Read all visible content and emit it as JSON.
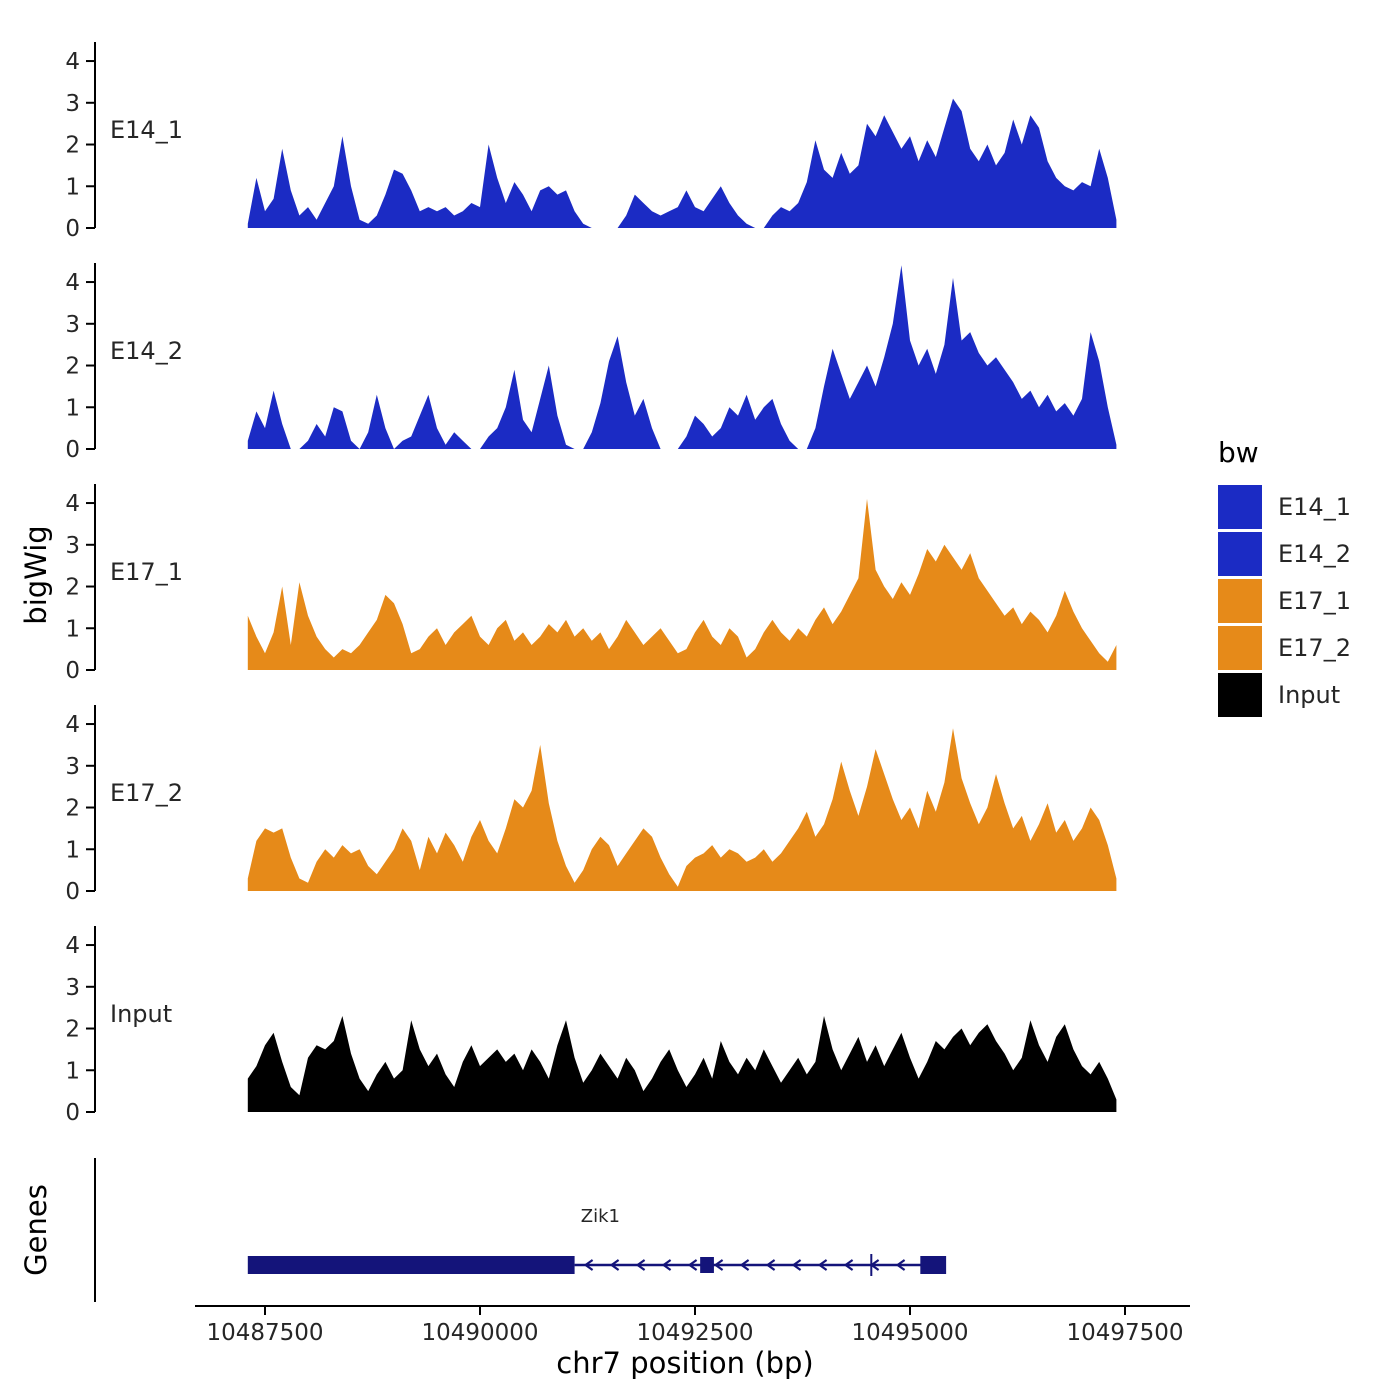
{
  "figure": {
    "y_axis_title": "bigWig",
    "genes_axis_title": "Genes",
    "x_axis_title": "chr7 position (bp)"
  },
  "legend": {
    "title": "bw",
    "items": [
      {
        "label": "E14_1",
        "color": "#1b2bc4"
      },
      {
        "label": "E14_2",
        "color": "#1b2bc4"
      },
      {
        "label": "E17_1",
        "color": "#e68a19"
      },
      {
        "label": "E17_2",
        "color": "#e68a19"
      },
      {
        "label": "Input",
        "color": "#000000"
      }
    ]
  },
  "chart_data": {
    "type": "area",
    "title": "",
    "xlabel": "chr7 position (bp)",
    "ylabel": "bigWig",
    "x_start": 10487300,
    "x_step": 100,
    "x_ticks": [
      10487500,
      10490000,
      10492500,
      10495000,
      10497500
    ],
    "y_ticks": [
      0,
      1,
      2,
      3,
      4
    ],
    "ylim": [
      0,
      4.6
    ],
    "xlim": [
      10486700,
      10498000
    ],
    "tracks": [
      {
        "name": "E14_1",
        "color": "#1b2bc4",
        "values": [
          0.1,
          1.2,
          0.4,
          0.7,
          1.9,
          0.9,
          0.3,
          0.5,
          0.2,
          0.6,
          1.0,
          2.2,
          1.0,
          0.2,
          0.1,
          0.3,
          0.8,
          1.4,
          1.3,
          0.9,
          0.4,
          0.5,
          0.4,
          0.5,
          0.3,
          0.4,
          0.6,
          0.5,
          2.0,
          1.2,
          0.6,
          1.1,
          0.8,
          0.4,
          0.9,
          1.0,
          0.8,
          0.9,
          0.4,
          0.1,
          0,
          0,
          0,
          0,
          0.3,
          0.8,
          0.6,
          0.4,
          0.3,
          0.4,
          0.5,
          0.9,
          0.5,
          0.4,
          0.7,
          1.0,
          0.6,
          0.3,
          0.1,
          0,
          0,
          0.3,
          0.5,
          0.4,
          0.6,
          1.1,
          2.1,
          1.4,
          1.2,
          1.8,
          1.3,
          1.5,
          2.5,
          2.2,
          2.7,
          2.3,
          1.9,
          2.2,
          1.6,
          2.1,
          1.7,
          2.4,
          3.1,
          2.8,
          1.9,
          1.6,
          2.0,
          1.5,
          1.8,
          2.6,
          2.0,
          2.7,
          2.4,
          1.6,
          1.2,
          1.0,
          0.9,
          1.1,
          1.0,
          1.9,
          1.2,
          0.2
        ]
      },
      {
        "name": "E14_2",
        "color": "#1b2bc4",
        "values": [
          0.2,
          0.9,
          0.5,
          1.4,
          0.6,
          0,
          0,
          0.2,
          0.6,
          0.3,
          1.0,
          0.9,
          0.2,
          0,
          0.4,
          1.3,
          0.5,
          0,
          0.2,
          0.3,
          0.8,
          1.3,
          0.5,
          0.1,
          0.4,
          0.2,
          0,
          0,
          0.3,
          0.5,
          1.0,
          1.9,
          0.7,
          0.4,
          1.2,
          2.0,
          0.8,
          0.1,
          0,
          0,
          0.4,
          1.1,
          2.1,
          2.7,
          1.6,
          0.8,
          1.2,
          0.5,
          0,
          0,
          0,
          0.3,
          0.8,
          0.6,
          0.3,
          0.5,
          1.0,
          0.8,
          1.3,
          0.7,
          1.0,
          1.2,
          0.6,
          0.2,
          0,
          0,
          0.5,
          1.5,
          2.4,
          1.8,
          1.2,
          1.6,
          2.0,
          1.5,
          2.2,
          3.0,
          4.4,
          2.6,
          2.0,
          2.4,
          1.8,
          2.5,
          4.1,
          2.6,
          2.8,
          2.3,
          2.0,
          2.2,
          1.9,
          1.6,
          1.2,
          1.4,
          1.0,
          1.3,
          0.9,
          1.1,
          0.8,
          1.2,
          2.8,
          2.1,
          1.0,
          0.1
        ]
      },
      {
        "name": "E17_1",
        "color": "#e68a19",
        "values": [
          1.3,
          0.8,
          0.4,
          0.9,
          2.0,
          0.6,
          2.1,
          1.3,
          0.8,
          0.5,
          0.3,
          0.5,
          0.4,
          0.6,
          0.9,
          1.2,
          1.8,
          1.6,
          1.1,
          0.4,
          0.5,
          0.8,
          1.0,
          0.6,
          0.9,
          1.1,
          1.3,
          0.8,
          0.6,
          1.0,
          1.2,
          0.7,
          0.9,
          0.6,
          0.8,
          1.1,
          0.9,
          1.2,
          0.8,
          1.0,
          0.7,
          0.9,
          0.5,
          0.8,
          1.2,
          0.9,
          0.6,
          0.8,
          1.0,
          0.7,
          0.4,
          0.5,
          0.9,
          1.2,
          0.8,
          0.6,
          1.0,
          0.8,
          0.3,
          0.5,
          0.9,
          1.2,
          0.9,
          0.7,
          1.0,
          0.8,
          1.2,
          1.5,
          1.1,
          1.4,
          1.8,
          2.2,
          4.1,
          2.4,
          2.0,
          1.7,
          2.1,
          1.8,
          2.3,
          2.9,
          2.6,
          3.0,
          2.7,
          2.4,
          2.8,
          2.2,
          1.9,
          1.6,
          1.3,
          1.5,
          1.1,
          1.4,
          1.2,
          0.9,
          1.3,
          1.9,
          1.4,
          1.0,
          0.7,
          0.4,
          0.2,
          0.6
        ]
      },
      {
        "name": "E17_2",
        "color": "#e68a19",
        "values": [
          0.3,
          1.2,
          1.5,
          1.4,
          1.5,
          0.8,
          0.3,
          0.2,
          0.7,
          1.0,
          0.8,
          1.1,
          0.9,
          1.0,
          0.6,
          0.4,
          0.7,
          1.0,
          1.5,
          1.2,
          0.5,
          1.3,
          0.9,
          1.4,
          1.1,
          0.7,
          1.3,
          1.7,
          1.2,
          0.9,
          1.5,
          2.2,
          2.0,
          2.4,
          3.5,
          2.1,
          1.2,
          0.6,
          0.2,
          0.5,
          1.0,
          1.3,
          1.1,
          0.6,
          0.9,
          1.2,
          1.5,
          1.3,
          0.8,
          0.4,
          0.1,
          0.6,
          0.8,
          0.9,
          1.1,
          0.8,
          1.0,
          0.9,
          0.7,
          0.8,
          1.0,
          0.7,
          0.9,
          1.2,
          1.5,
          1.9,
          1.3,
          1.6,
          2.2,
          3.1,
          2.4,
          1.8,
          2.5,
          3.4,
          2.8,
          2.2,
          1.7,
          2.0,
          1.5,
          2.4,
          1.9,
          2.6,
          3.9,
          2.7,
          2.1,
          1.6,
          2.0,
          2.8,
          2.1,
          1.5,
          1.8,
          1.2,
          1.6,
          2.1,
          1.4,
          1.7,
          1.2,
          1.5,
          2.0,
          1.7,
          1.1,
          0.3
        ]
      },
      {
        "name": "Input",
        "color": "#000000",
        "values": [
          0.8,
          1.1,
          1.6,
          1.9,
          1.2,
          0.6,
          0.4,
          1.3,
          1.6,
          1.5,
          1.7,
          2.3,
          1.4,
          0.8,
          0.5,
          0.9,
          1.2,
          0.8,
          1.0,
          2.2,
          1.5,
          1.1,
          1.4,
          0.9,
          0.6,
          1.2,
          1.6,
          1.1,
          1.3,
          1.5,
          1.2,
          1.4,
          1.0,
          1.5,
          1.2,
          0.8,
          1.6,
          2.2,
          1.3,
          0.7,
          1.0,
          1.4,
          1.1,
          0.8,
          1.3,
          1.0,
          0.5,
          0.8,
          1.2,
          1.5,
          1.0,
          0.6,
          0.9,
          1.3,
          0.8,
          1.7,
          1.2,
          0.9,
          1.3,
          1.0,
          1.5,
          1.1,
          0.7,
          1.0,
          1.3,
          0.9,
          1.2,
          2.3,
          1.5,
          1.0,
          1.4,
          1.8,
          1.2,
          1.6,
          1.1,
          1.5,
          1.9,
          1.3,
          0.8,
          1.2,
          1.7,
          1.5,
          1.8,
          2.0,
          1.6,
          1.9,
          2.1,
          1.7,
          1.4,
          1.0,
          1.3,
          2.2,
          1.6,
          1.2,
          1.8,
          2.1,
          1.5,
          1.1,
          0.9,
          1.2,
          0.8,
          0.3
        ]
      }
    ],
    "gene": {
      "name": "Zik1",
      "strand": "-",
      "color": "#14147a",
      "thick_start": 10487300,
      "thick_end": 10491100,
      "line_end": 10495400,
      "exons": [
        {
          "start": 10492560,
          "end": 10492720
        }
      ],
      "cross_tick": 10494550,
      "end_box": {
        "start": 10495120,
        "end": 10495420
      },
      "label_bp": 10491400
    }
  }
}
